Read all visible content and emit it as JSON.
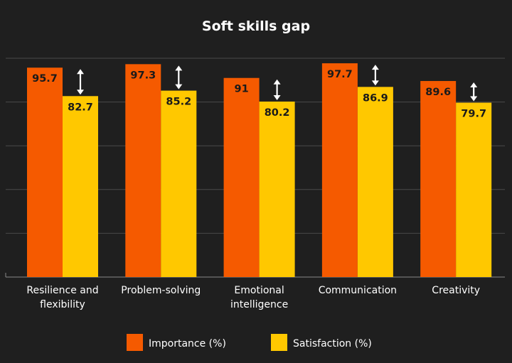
{
  "chart_data": {
    "type": "bar",
    "title": "Soft skills gap",
    "categories": [
      [
        "Resilience and",
        "flexibility"
      ],
      [
        "Problem-solving"
      ],
      [
        "Emotional",
        "intelligence"
      ],
      [
        "Communication"
      ],
      [
        "Creativity"
      ]
    ],
    "series": [
      {
        "name": "Importance (%)",
        "color": "#f55a00",
        "values": [
          95.7,
          97.3,
          91,
          97.7,
          89.6
        ],
        "labels": [
          "95.7",
          "97.3",
          "91",
          "97.7",
          "89.6"
        ]
      },
      {
        "name": "Satisfaction (%)",
        "color": "#ffc800",
        "values": [
          82.7,
          85.2,
          80.2,
          86.9,
          79.7
        ],
        "labels": [
          "82.7",
          "85.2",
          "80.2",
          "86.9",
          "79.7"
        ]
      }
    ],
    "ylim": [
      0,
      100
    ],
    "grid": true,
    "gap_arrows": true,
    "legend_position": "bottom"
  }
}
